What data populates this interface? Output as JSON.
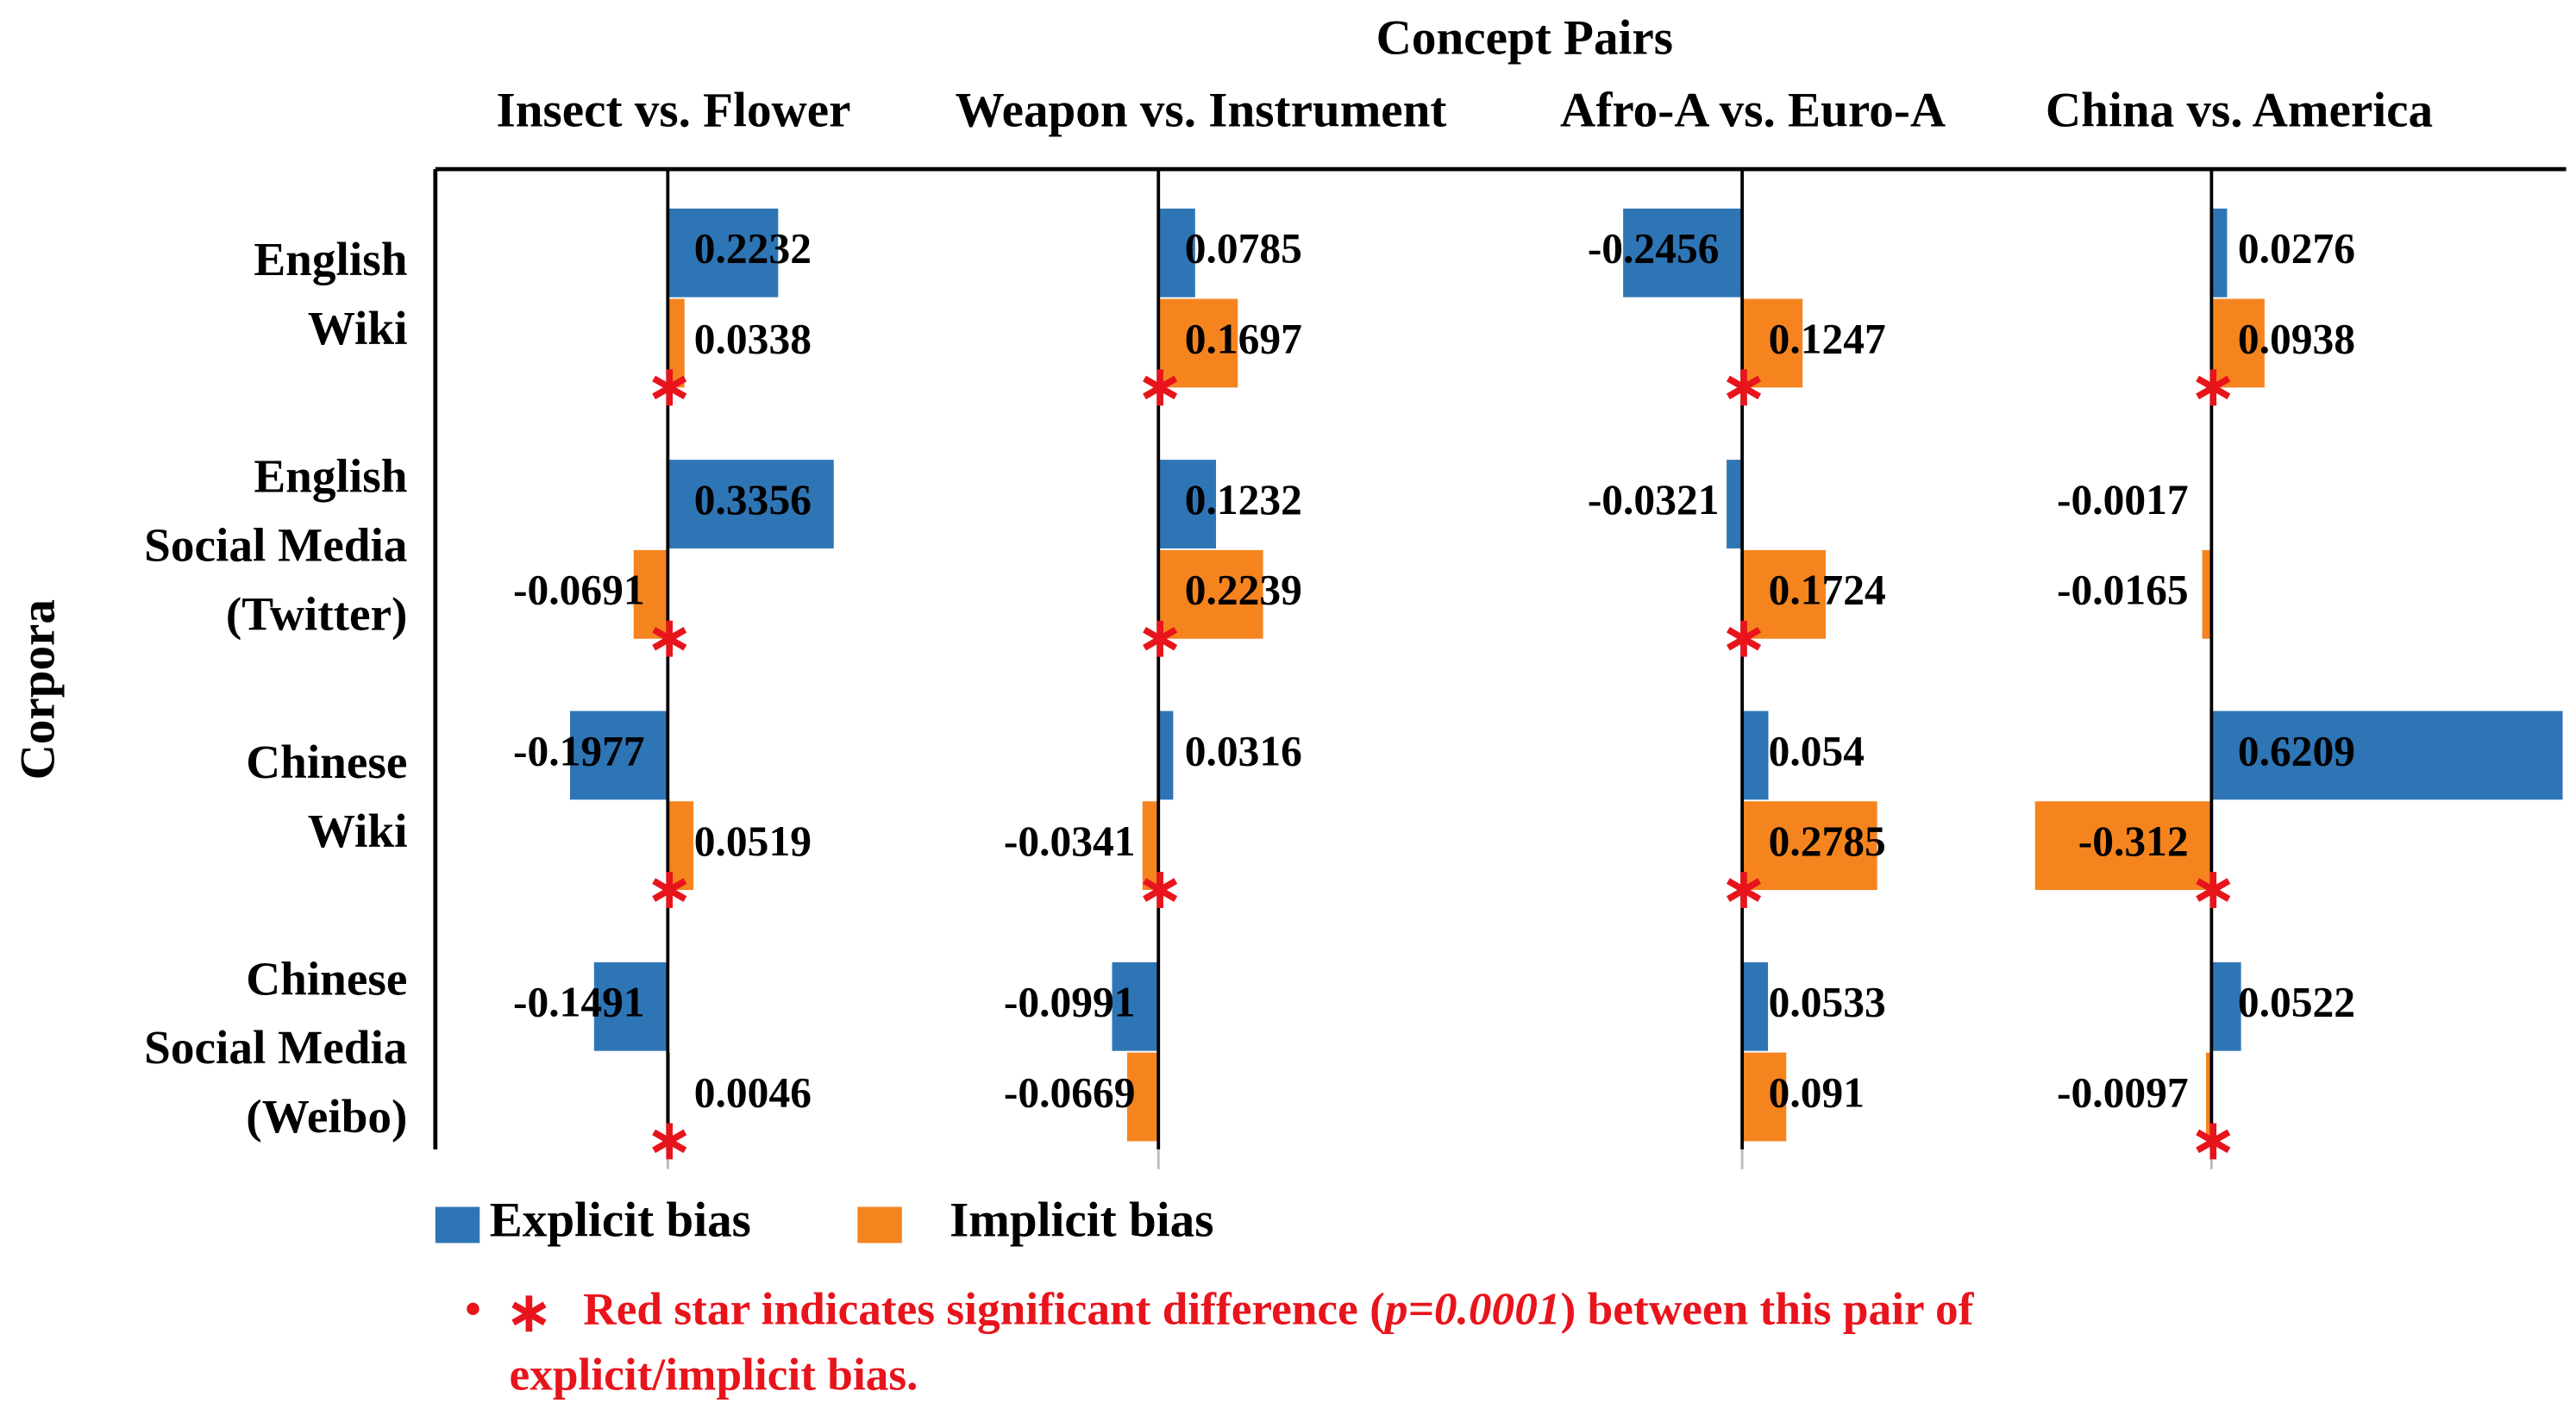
{
  "chart_data": {
    "type": "bar",
    "orientation": "horizontal",
    "title": "Concept Pairs",
    "y_label": "Corpora",
    "categories": [
      [
        "English",
        "Wiki"
      ],
      [
        "English",
        "Social Media",
        "(Twitter)"
      ],
      [
        "Chinese",
        "Wiki"
      ],
      [
        "Chinese",
        "Social Media",
        "(Weibo)"
      ]
    ],
    "legend": [
      {
        "name": "Explicit bias",
        "color": "#2e75b6"
      },
      {
        "name": "Implicit bias",
        "color": "#f5841f"
      }
    ],
    "panels": [
      {
        "title": "Insect vs. Flower",
        "xlim": [
          -0.47,
          0.51
        ],
        "explicit": [
          0.2232,
          0.3356,
          -0.1977,
          -0.1491
        ],
        "implicit": [
          0.0338,
          -0.0691,
          0.0519,
          0.0046
        ],
        "significant": [
          true,
          true,
          true,
          true
        ]
      },
      {
        "title": "Weapon vs. Instrument",
        "xlim": [
          -0.51,
          0.72
        ],
        "explicit": [
          0.0785,
          0.1232,
          0.0316,
          -0.0991
        ],
        "implicit": [
          0.1697,
          0.2239,
          -0.0341,
          -0.0669
        ],
        "significant": [
          true,
          true,
          true,
          false
        ]
      },
      {
        "title": "Afro-A vs. Euro-A",
        "xlim": [
          -0.51,
          0.49
        ],
        "explicit": [
          -0.2456,
          -0.0321,
          0.054,
          0.0533
        ],
        "implicit": [
          0.1247,
          0.1724,
          0.2785,
          0.091
        ],
        "significant": [
          true,
          true,
          true,
          false
        ]
      },
      {
        "title": "China vs. America",
        "xlim": [
          -0.41,
          0.63
        ],
        "explicit": [
          0.0276,
          -0.0017,
          0.6209,
          0.0522
        ],
        "implicit": [
          0.0938,
          -0.0165,
          -0.312,
          -0.0097
        ],
        "significant": [
          true,
          false,
          true,
          true
        ]
      }
    ],
    "note": {
      "prefix": "Red star indicates significant difference (",
      "p": "p=0.0001",
      "suffix": ") between this pair of",
      "line2": "explicit/implicit bias."
    }
  }
}
